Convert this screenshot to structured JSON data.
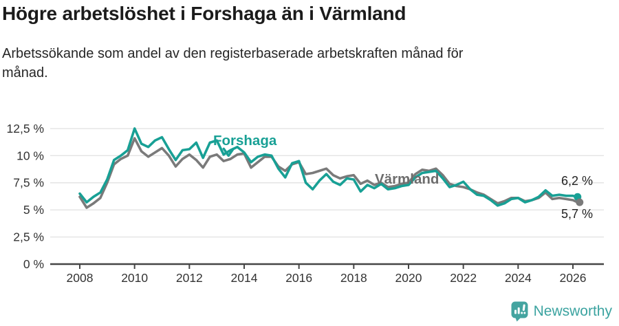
{
  "header": {
    "title": "Högre arbetslöshet i Forshaga än i Värmland",
    "subtitle_line1": "Arbetssökande som andel av den registerbaserade arbetskraften månad för",
    "subtitle_line2": "månad."
  },
  "chart_data": {
    "type": "line",
    "title": "Högre arbetslöshet i Forshaga än i Värmland",
    "subtitle": "Arbetssökande som andel av den registerbaserade arbetskraften månad för månad.",
    "xlabel": "",
    "ylabel": "",
    "grid": "horizontal",
    "legend_position": "inline-annotations",
    "xlim": [
      2007.3,
      2027
    ],
    "ylim": [
      0,
      13.2
    ],
    "y_ticks": [
      {
        "value": 0,
        "label": "0 %"
      },
      {
        "value": 2.5,
        "label": "2,5 %"
      },
      {
        "value": 5,
        "label": "5 %"
      },
      {
        "value": 7.5,
        "label": "7,5 %"
      },
      {
        "value": 10,
        "label": "10 %"
      },
      {
        "value": 12.5,
        "label": "12,5 %"
      }
    ],
    "x_ticks": [
      {
        "year": 2008,
        "label": "2008"
      },
      {
        "year": 2010,
        "label": "2010"
      },
      {
        "year": 2012,
        "label": "2012"
      },
      {
        "year": 2014,
        "label": "2014"
      },
      {
        "year": 2016,
        "label": "2016"
      },
      {
        "year": 2018,
        "label": "2018"
      },
      {
        "year": 2020,
        "label": "2020"
      },
      {
        "year": 2022,
        "label": "2022"
      },
      {
        "year": 2024,
        "label": "2024"
      },
      {
        "year": 2026,
        "label": "2026"
      }
    ],
    "x": [
      2008,
      2008.25,
      2008.5,
      2008.75,
      2009,
      2009.25,
      2009.5,
      2009.75,
      2010,
      2010.25,
      2010.5,
      2010.75,
      2011,
      2011.25,
      2011.5,
      2011.75,
      2012,
      2012.25,
      2012.5,
      2012.75,
      2013,
      2013.25,
      2013.5,
      2013.75,
      2014,
      2014.25,
      2014.5,
      2014.75,
      2015,
      2015.25,
      2015.5,
      2015.75,
      2016,
      2016.25,
      2016.5,
      2016.75,
      2017,
      2017.25,
      2017.5,
      2017.75,
      2018,
      2018.25,
      2018.5,
      2018.75,
      2019,
      2019.25,
      2019.5,
      2019.75,
      2020,
      2020.25,
      2020.5,
      2020.75,
      2021,
      2021.25,
      2021.5,
      2021.75,
      2022,
      2022.25,
      2022.5,
      2022.75,
      2023,
      2023.25,
      2023.5,
      2023.75,
      2024,
      2024.25,
      2024.5,
      2024.75,
      2025,
      2025.25,
      2025.5,
      2025.75,
      2026,
      2026.17
    ],
    "series": [
      {
        "name": "Forshaga",
        "color": "#18a095",
        "label_pos": {
          "x": 2012.87,
          "y": 10.97
        },
        "arrow": {
          "x": 2013.43,
          "y": 10.0
        },
        "end_label": "6,2 %",
        "end_value": 6.2,
        "values": [
          6.5,
          5.7,
          6.2,
          6.6,
          7.8,
          9.6,
          10,
          10.5,
          12.5,
          11.1,
          10.8,
          11.4,
          11.7,
          10.6,
          9.6,
          10.5,
          10.6,
          11.2,
          9.8,
          11.2,
          11.4,
          10.1,
          10.5,
          10.8,
          10.3,
          9.4,
          9.9,
          10.1,
          10,
          8.8,
          8,
          9.3,
          9.5,
          7.5,
          6.9,
          7.7,
          8.3,
          7.6,
          7.3,
          7.9,
          7.8,
          6.7,
          7.3,
          7,
          7.4,
          6.9,
          7,
          7.2,
          7.3,
          8,
          8.4,
          8.5,
          8.6,
          7.9,
          7.1,
          7.3,
          7.6,
          6.9,
          6.4,
          6.3,
          5.9,
          5.4,
          5.6,
          6,
          6.1,
          5.7,
          5.9,
          6.2,
          6.8,
          6.3,
          6.4,
          6.3,
          6.3,
          6.2
        ]
      },
      {
        "name": "Värmland",
        "color": "#7a7a7a",
        "label_color": "#6d6d6d",
        "label_pos": {
          "x": 2018.77,
          "y": 7.42
        },
        "end_label": "5,7 %",
        "end_value": 5.7,
        "values": [
          6.2,
          5.2,
          5.6,
          6.1,
          7.5,
          9.2,
          9.7,
          10,
          11.6,
          10.4,
          9.9,
          10.3,
          10.7,
          10,
          9,
          9.7,
          10.1,
          9.6,
          8.9,
          9.9,
          10.1,
          9.5,
          9.7,
          10.1,
          10.2,
          8.9,
          9.4,
          9.9,
          9.9,
          9,
          8.6,
          9.2,
          9.4,
          8.3,
          8.4,
          8.6,
          8.8,
          8.2,
          7.9,
          8.1,
          8.2,
          7.4,
          7.7,
          7.3,
          7.5,
          7.1,
          7.2,
          7.4,
          7.5,
          8.3,
          8.7,
          8.6,
          8.8,
          8.2,
          7.4,
          7.2,
          7.1,
          6.9,
          6.6,
          6.4,
          6,
          5.6,
          5.8,
          6.1,
          6.1,
          5.8,
          5.9,
          6.1,
          6.6,
          6,
          6.1,
          6,
          5.9,
          5.7
        ]
      }
    ],
    "colors": {
      "accent_teal": "#18a095",
      "series_gray": "#7a7a7a",
      "grid": "#e3e3e3",
      "axis": "#454545",
      "logo_teal": "#44a4a0"
    }
  },
  "footer": {
    "brand": "Newsworthy"
  }
}
